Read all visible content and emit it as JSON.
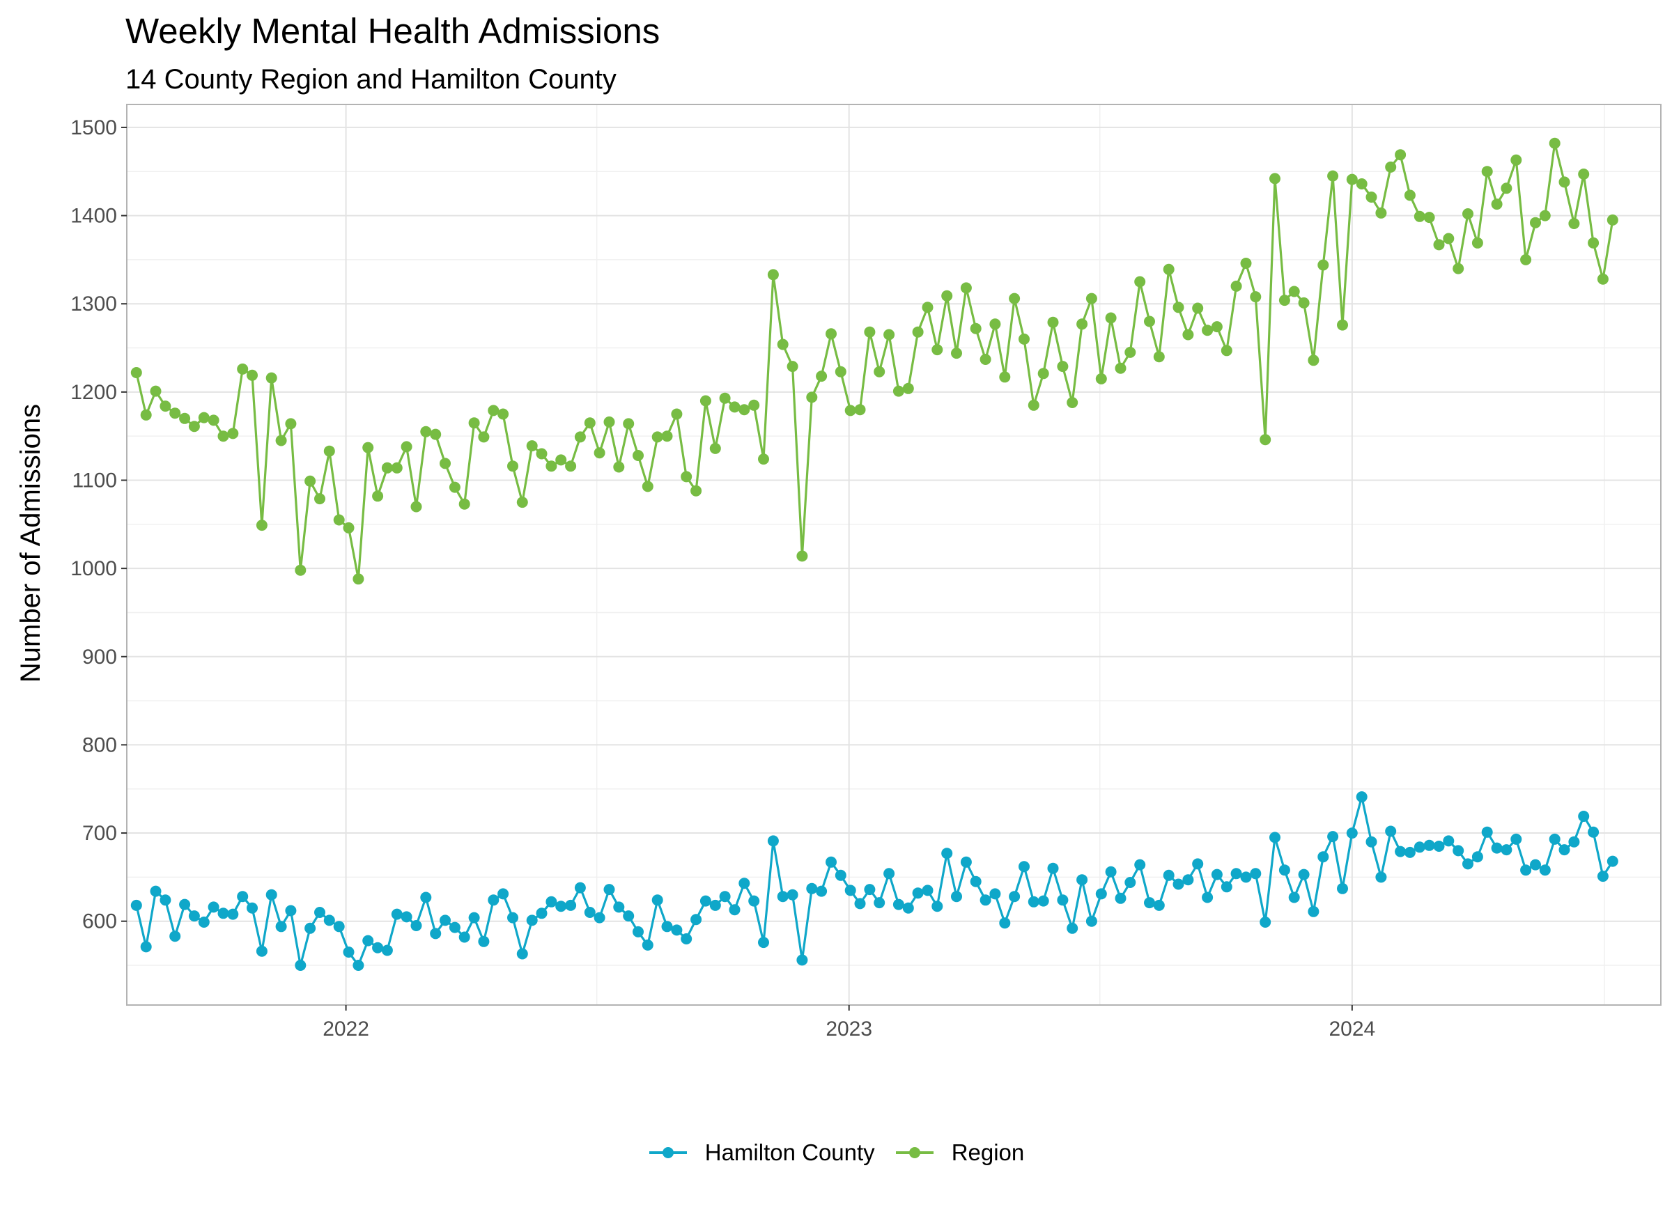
{
  "chart_data": {
    "type": "line",
    "title": "Weekly Mental Health Admissions",
    "subtitle": "14 County Region and Hamilton County",
    "xlabel": "",
    "ylabel": "Number of Admissions",
    "x_tick_labels": [
      "2022",
      "2023",
      "2024"
    ],
    "y_ticks": [
      600,
      700,
      800,
      900,
      1000,
      1100,
      1200,
      1300,
      1400,
      1500
    ],
    "ylim": [
      505,
      1526
    ],
    "xlim": [
      "2021-07-26",
      "2024-08-12"
    ],
    "grid": true,
    "legend_position": "bottom",
    "x_start": "2021-08-02",
    "x_step": "weekly",
    "series": [
      {
        "name": "Hamilton County",
        "color": "#0FA7C9",
        "values": [
          618,
          571,
          634,
          624,
          583,
          619,
          606,
          599,
          616,
          609,
          608,
          628,
          615,
          566,
          630,
          594,
          612,
          550,
          592,
          610,
          601,
          594,
          565,
          550,
          578,
          570,
          567,
          608,
          605,
          595,
          627,
          586,
          601,
          593,
          582,
          604,
          577,
          624,
          631,
          604,
          563,
          601,
          609,
          622,
          617,
          618,
          638,
          610,
          604,
          636,
          616,
          606,
          588,
          573,
          624,
          594,
          590,
          580,
          602,
          623,
          618,
          628,
          613,
          643,
          623,
          576,
          691,
          628,
          630,
          556,
          637,
          634,
          667,
          652,
          635,
          620,
          636,
          621,
          654,
          619,
          615,
          632,
          635,
          617,
          677,
          628,
          667,
          645,
          624,
          631,
          598,
          628,
          662,
          622,
          623,
          660,
          624,
          592,
          647,
          600,
          631,
          656,
          626,
          644,
          664,
          621,
          618,
          652,
          642,
          647,
          665,
          627,
          653,
          639,
          654,
          650,
          654,
          599,
          695,
          658,
          627,
          653,
          611,
          673,
          696,
          637,
          700,
          741,
          690,
          650,
          702,
          679,
          678,
          684,
          686,
          685,
          691,
          680,
          665,
          673,
          701,
          683,
          681,
          693,
          658,
          664,
          658,
          693,
          681,
          690,
          719,
          701,
          651,
          668
        ]
      },
      {
        "name": "Region",
        "color": "#77BC43",
        "values": [
          1222,
          1174,
          1201,
          1184,
          1176,
          1170,
          1161,
          1171,
          1168,
          1150,
          1153,
          1226,
          1219,
          1049,
          1216,
          1145,
          1164,
          998,
          1099,
          1079,
          1133,
          1055,
          1046,
          988,
          1137,
          1082,
          1114,
          1114,
          1138,
          1070,
          1155,
          1152,
          1119,
          1092,
          1073,
          1165,
          1149,
          1179,
          1175,
          1116,
          1075,
          1139,
          1130,
          1116,
          1123,
          1116,
          1149,
          1165,
          1131,
          1166,
          1115,
          1164,
          1128,
          1093,
          1149,
          1150,
          1175,
          1104,
          1088,
          1190,
          1136,
          1193,
          1183,
          1180,
          1185,
          1124,
          1333,
          1254,
          1229,
          1014,
          1194,
          1218,
          1266,
          1223,
          1179,
          1180,
          1268,
          1223,
          1265,
          1201,
          1204,
          1268,
          1296,
          1248,
          1309,
          1244,
          1318,
          1272,
          1237,
          1277,
          1217,
          1306,
          1260,
          1185,
          1221,
          1279,
          1229,
          1188,
          1277,
          1306,
          1215,
          1284,
          1227,
          1245,
          1325,
          1280,
          1240,
          1339,
          1296,
          1265,
          1295,
          1270,
          1274,
          1247,
          1320,
          1346,
          1308,
          1146,
          1442,
          1304,
          1314,
          1301,
          1236,
          1344,
          1445,
          1276,
          1441,
          1436,
          1421,
          1403,
          1455,
          1469,
          1423,
          1399,
          1398,
          1367,
          1374,
          1340,
          1402,
          1369,
          1450,
          1413,
          1431,
          1463,
          1350,
          1392,
          1400,
          1482,
          1438,
          1391,
          1447,
          1369,
          1328,
          1395
        ]
      }
    ]
  }
}
